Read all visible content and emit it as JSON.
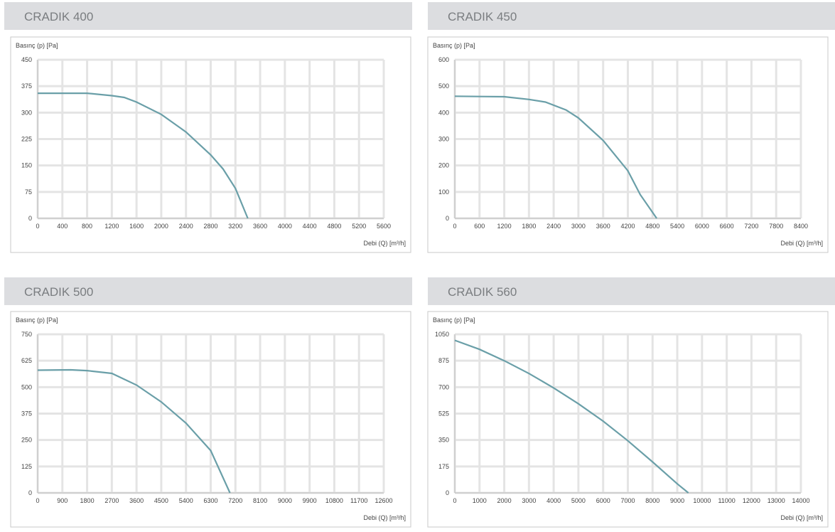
{
  "chart_data": [
    {
      "type": "line",
      "title": "CRADIK 400",
      "y_label": "Basınç (p) [Pa]",
      "x_label": "Debi (Q) [m³/h]",
      "color": "#6a9fa8",
      "x": [
        0,
        400,
        800,
        1200,
        1400,
        1600,
        2000,
        2400,
        2800,
        3000,
        3200,
        3400
      ],
      "values": [
        355,
        355,
        355,
        348,
        343,
        330,
        295,
        245,
        180,
        140,
        85,
        0
      ],
      "xlim": [
        0,
        5600
      ],
      "ylim": [
        0,
        450
      ],
      "xticks": [
        0,
        400,
        800,
        1200,
        1600,
        2000,
        2400,
        2800,
        3200,
        3600,
        4000,
        4400,
        4800,
        5200,
        5600
      ],
      "yticks": [
        0,
        75,
        150,
        225,
        300,
        375,
        450
      ]
    },
    {
      "type": "line",
      "title": "CRADIK 450",
      "y_label": "Basınç (p) [Pa]",
      "x_label": "Debi (Q) [m³/h]",
      "color": "#6a9fa8",
      "x": [
        0,
        600,
        1200,
        1800,
        2200,
        2700,
        3000,
        3600,
        4200,
        4500,
        4900
      ],
      "values": [
        462,
        461,
        460,
        450,
        440,
        410,
        380,
        295,
        180,
        90,
        0
      ],
      "xlim": [
        0,
        8400
      ],
      "ylim": [
        0,
        600
      ],
      "xticks": [
        0,
        600,
        1200,
        1800,
        2400,
        3000,
        3600,
        4200,
        4800,
        5400,
        6000,
        6600,
        7200,
        7800,
        8400
      ],
      "yticks": [
        0,
        100,
        200,
        300,
        400,
        500,
        600
      ]
    },
    {
      "type": "line",
      "title": "CRADIK 500",
      "y_label": "Basınç (p) [Pa]",
      "x_label": "Debi (Q) [m³/h]",
      "color": "#6a9fa8",
      "x": [
        0,
        1200,
        1800,
        2700,
        3600,
        4500,
        5400,
        6300,
        7000
      ],
      "values": [
        580,
        582,
        578,
        565,
        510,
        430,
        330,
        200,
        0
      ],
      "xlim": [
        0,
        12600
      ],
      "ylim": [
        0,
        750
      ],
      "xticks": [
        0,
        900,
        1800,
        2700,
        3600,
        4500,
        5400,
        6300,
        7200,
        8100,
        9000,
        9900,
        10800,
        11700,
        12600
      ],
      "yticks": [
        0,
        125,
        250,
        375,
        500,
        625,
        750
      ]
    },
    {
      "type": "line",
      "title": "CRADIK 560",
      "y_label": "Basınç (p) [Pa]",
      "x_label": "Debi (Q) [m³/h]",
      "color": "#6a9fa8",
      "x": [
        0,
        1000,
        2000,
        3000,
        4000,
        5000,
        6000,
        7000,
        8000,
        9000,
        9450
      ],
      "values": [
        1010,
        950,
        875,
        790,
        695,
        590,
        475,
        345,
        205,
        60,
        0
      ],
      "xlim": [
        0,
        14000
      ],
      "ylim": [
        0,
        1050
      ],
      "xticks": [
        0,
        1000,
        2000,
        3000,
        4000,
        5000,
        6000,
        7000,
        8000,
        9000,
        10000,
        11000,
        12000,
        13000,
        14000
      ],
      "yticks": [
        0,
        175,
        350,
        525,
        700,
        875,
        1050
      ]
    }
  ]
}
